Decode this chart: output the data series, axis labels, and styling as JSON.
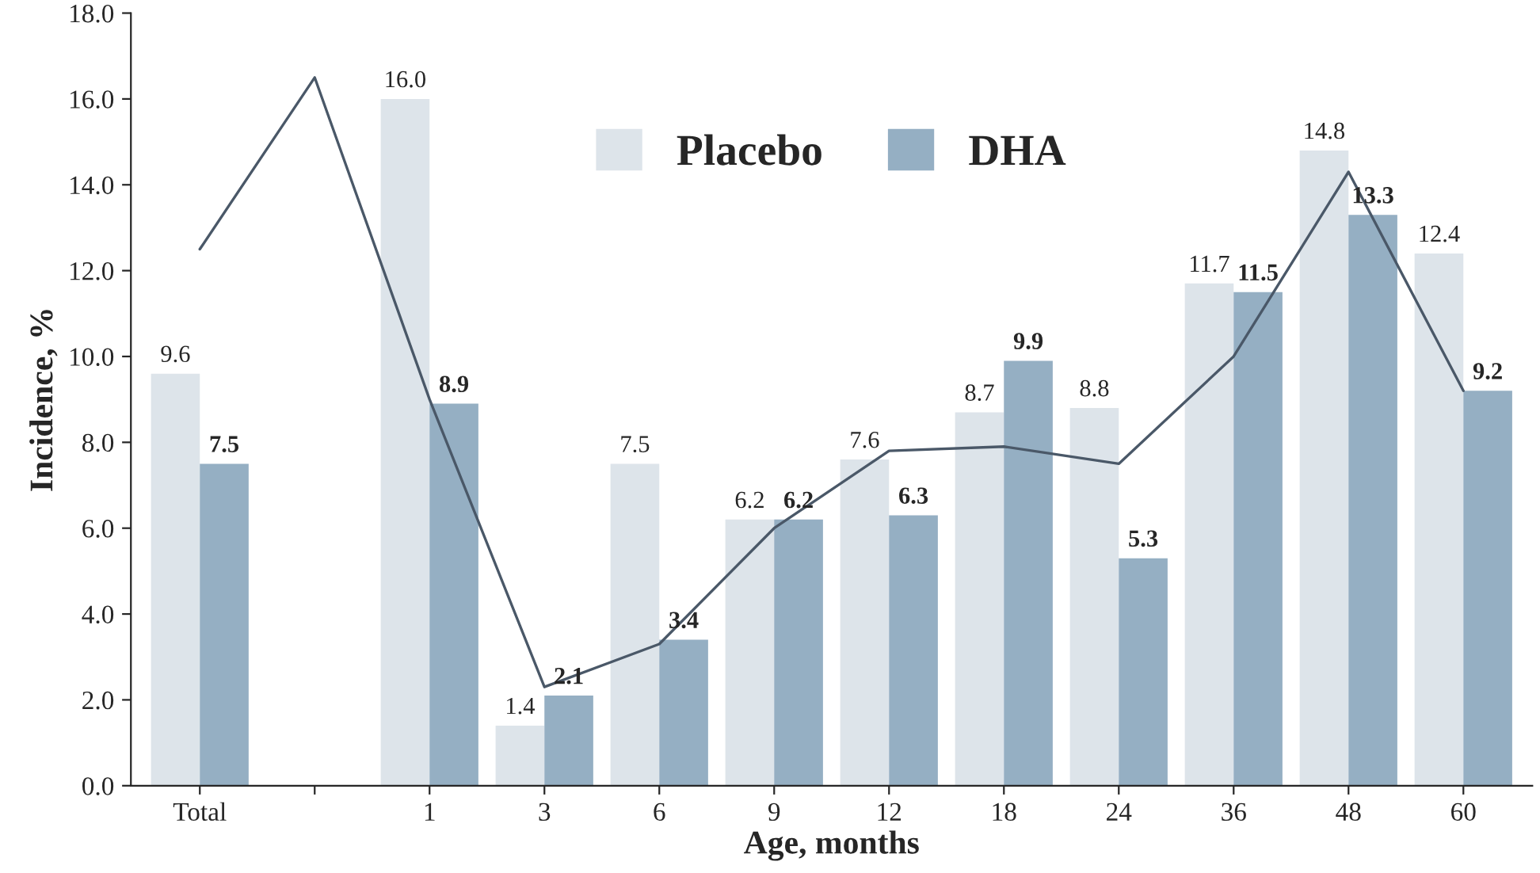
{
  "chart_data": {
    "type": "bar",
    "xlabel": "Age, months",
    "ylabel": "Incidence, %",
    "categories": [
      "Total",
      null,
      "1",
      "3",
      "6",
      "9",
      "12",
      "18",
      "24",
      "36",
      "48",
      "60"
    ],
    "series": [
      {
        "name": "Placebo",
        "color": "#dde4ea",
        "values": [
          9.6,
          null,
          16.0,
          1.4,
          7.5,
          6.2,
          7.6,
          8.7,
          8.8,
          11.7,
          14.8,
          12.4
        ],
        "value_labels": [
          "9.6",
          null,
          "16.0",
          "1.4",
          "7.5",
          "6.2",
          "7.6",
          "8.7",
          "8.8",
          "11.7",
          "14.8",
          "12.4"
        ]
      },
      {
        "name": "DHA",
        "color": "#95afc3",
        "values": [
          7.5,
          null,
          8.9,
          2.1,
          3.4,
          6.2,
          6.3,
          9.9,
          5.3,
          11.5,
          13.3,
          9.2
        ],
        "value_labels": [
          "7.5",
          null,
          "8.9",
          "2.1",
          "3.4",
          "6.2",
          "6.3",
          "9.9",
          "5.3",
          "11.5",
          "13.3",
          "9.2"
        ]
      },
      {
        "type": "line",
        "color": "#4a5868",
        "values": [
          12.5,
          16.5,
          9.0,
          2.3,
          3.3,
          6.0,
          7.8,
          7.9,
          7.5,
          10.0,
          14.3,
          9.2
        ]
      }
    ],
    "legend": "top",
    "grid": false,
    "ylim": [
      0,
      18
    ],
    "yticks": [
      {
        "value": 0,
        "label": "0.0"
      },
      {
        "value": 2,
        "label": "2.0"
      },
      {
        "value": 4,
        "label": "4.0"
      },
      {
        "value": 6,
        "label": "6.0"
      },
      {
        "value": 8,
        "label": "8.0"
      },
      {
        "value": 10,
        "label": "10.0"
      },
      {
        "value": 12,
        "label": "12.0"
      },
      {
        "value": 14,
        "label": "14.0"
      },
      {
        "value": 16,
        "label": "16.0"
      },
      {
        "value": 18,
        "label": "18.0"
      }
    ]
  }
}
